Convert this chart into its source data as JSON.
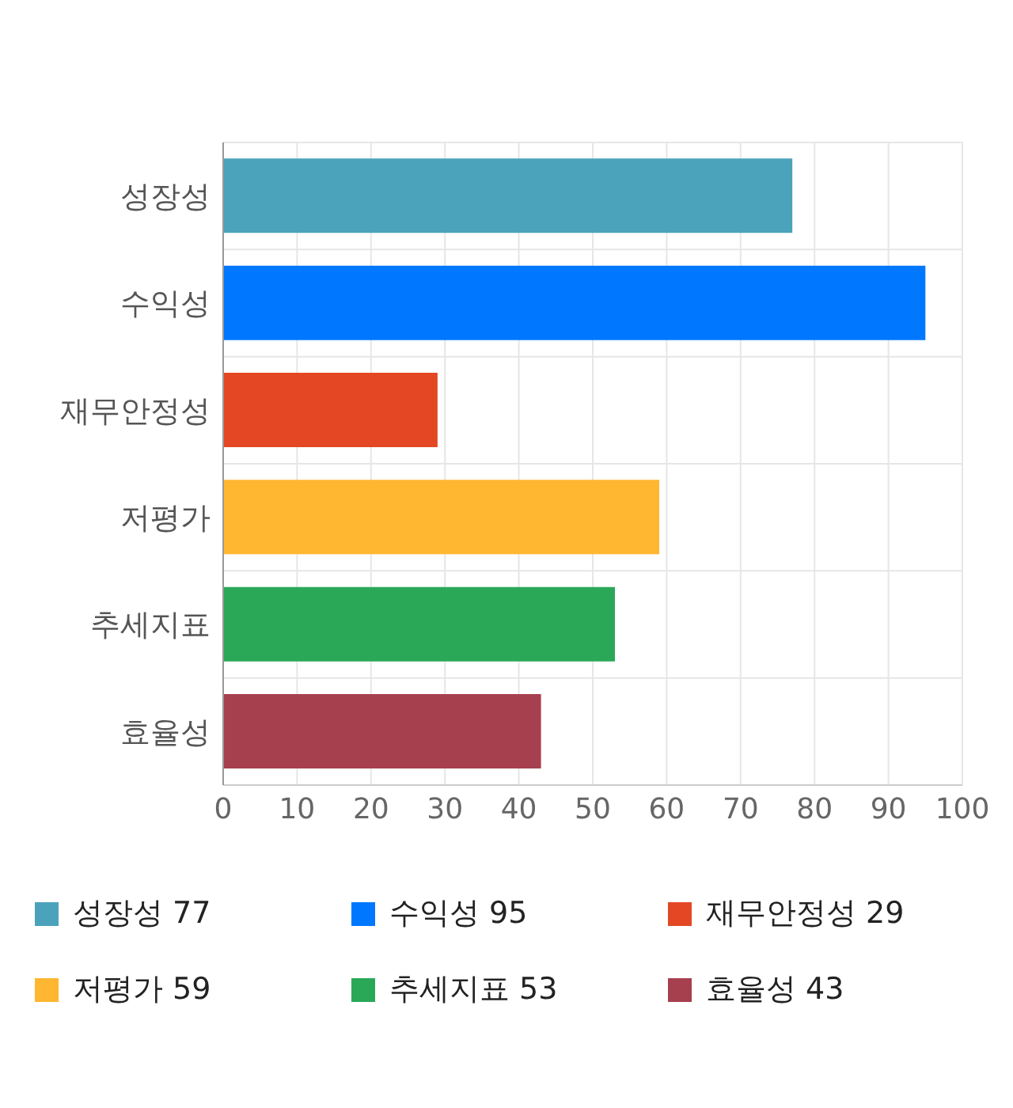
{
  "chart_data": {
    "type": "bar",
    "orientation": "horizontal",
    "stacked": true,
    "categories": [
      "성장성",
      "수익성",
      "재무안정성",
      "저평가",
      "추세지표",
      "효율성"
    ],
    "series": [
      {
        "name": "성장성 77",
        "color": "#4aa3ba",
        "values": [
          77,
          null,
          null,
          null,
          null,
          null
        ]
      },
      {
        "name": "수익성 95",
        "color": "#0077ff",
        "values": [
          null,
          95,
          null,
          null,
          null,
          null
        ]
      },
      {
        "name": "재무안정성 29",
        "color": "#e34724",
        "values": [
          null,
          null,
          29,
          null,
          null,
          null
        ]
      },
      {
        "name": "저평가 59",
        "color": "#ffb631",
        "values": [
          null,
          null,
          null,
          59,
          null,
          null
        ]
      },
      {
        "name": "추세지표 53",
        "color": "#2aa858",
        "values": [
          null,
          null,
          null,
          null,
          53,
          null
        ]
      },
      {
        "name": "효율성 43",
        "color": "#a6404f",
        "values": [
          null,
          null,
          null,
          null,
          null,
          43
        ]
      }
    ],
    "xlim": [
      0,
      100
    ],
    "xticks": [
      0,
      10,
      20,
      30,
      40,
      50,
      60,
      70,
      80,
      90,
      100
    ],
    "grid": true,
    "legend": "bottom"
  }
}
